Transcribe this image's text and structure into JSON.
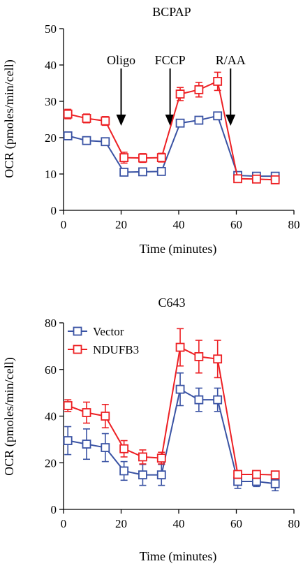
{
  "colors": {
    "vector": "#3a53a4",
    "ndufb3": "#ed2024",
    "axis": "#000000"
  },
  "chart_data": [
    {
      "type": "line",
      "title": "BCPAP",
      "xlabel": "Time (minutes)",
      "ylabel": "OCR (pmoles/min/cell)",
      "xlim": [
        0,
        80
      ],
      "ylim": [
        0,
        50
      ],
      "xticks": [
        0,
        20,
        40,
        60,
        80
      ],
      "yticks": [
        0,
        10,
        20,
        30,
        40,
        50
      ],
      "grid": false,
      "legend": "none",
      "annotations": [
        {
          "text": "Oligo",
          "x": 20
        },
        {
          "text": "FCCP",
          "x": 37
        },
        {
          "text": "R/AA",
          "x": 58
        }
      ],
      "series": [
        {
          "key": "vector",
          "x": [
            1.5,
            8,
            14.5,
            21,
            27.5,
            34,
            40.5,
            47,
            53.5,
            60.5,
            67,
            73.5
          ],
          "y": [
            20.5,
            19.2,
            18.9,
            10.5,
            10.6,
            10.7,
            24,
            24.8,
            26,
            9.6,
            9.4,
            9.4
          ],
          "err": [
            1.0,
            0.8,
            0.8,
            0.5,
            0.5,
            0.5,
            0.6,
            0.7,
            0.6,
            0.5,
            0.5,
            0.5
          ]
        },
        {
          "key": "ndufb3",
          "x": [
            1.5,
            8,
            14.5,
            21,
            27.5,
            34,
            40.5,
            47,
            53.5,
            60.5,
            67,
            73.5
          ],
          "y": [
            26.5,
            25.3,
            24.6,
            14.5,
            14.4,
            14.5,
            32,
            33.2,
            35.5,
            8.7,
            8.6,
            8.4
          ],
          "err": [
            1.3,
            1.2,
            1.2,
            1.5,
            1.2,
            1.2,
            1.8,
            2.0,
            2.5,
            0.8,
            0.6,
            0.6
          ]
        }
      ]
    },
    {
      "type": "line",
      "title": "C643",
      "xlabel": "Time (minutes)",
      "ylabel": "OCR (pmoles/min/cell)",
      "xlim": [
        0,
        80
      ],
      "ylim": [
        0,
        80
      ],
      "xticks": [
        0,
        20,
        40,
        60,
        80
      ],
      "yticks": [
        0,
        20,
        40,
        60,
        80
      ],
      "grid": false,
      "legend": "top-left",
      "annotations": [],
      "series": [
        {
          "key": "vector",
          "name": "Vector",
          "x": [
            1.5,
            8,
            14.5,
            21,
            27.5,
            34,
            40.5,
            47,
            53.5,
            60.5,
            67,
            73.5
          ],
          "y": [
            29.5,
            28,
            26.5,
            16.5,
            14.8,
            14.8,
            51.5,
            47,
            47,
            12,
            12,
            11
          ],
          "err": [
            6,
            6.5,
            6,
            4,
            4.5,
            4.5,
            7,
            5,
            5,
            3,
            2.2,
            3
          ]
        },
        {
          "key": "ndufb3",
          "name": "NDUFB3",
          "x": [
            1.5,
            8,
            14.5,
            21,
            27.5,
            34,
            40.5,
            47,
            53.5,
            60.5,
            67,
            73.5
          ],
          "y": [
            44.5,
            41.5,
            40,
            26,
            22.5,
            22,
            69.5,
            65.5,
            64.5,
            15,
            15,
            14.8
          ],
          "err": [
            2.5,
            4.5,
            5,
            3.5,
            3,
            2.5,
            8,
            7,
            8,
            1.5,
            1.5,
            1.5
          ]
        }
      ]
    }
  ]
}
